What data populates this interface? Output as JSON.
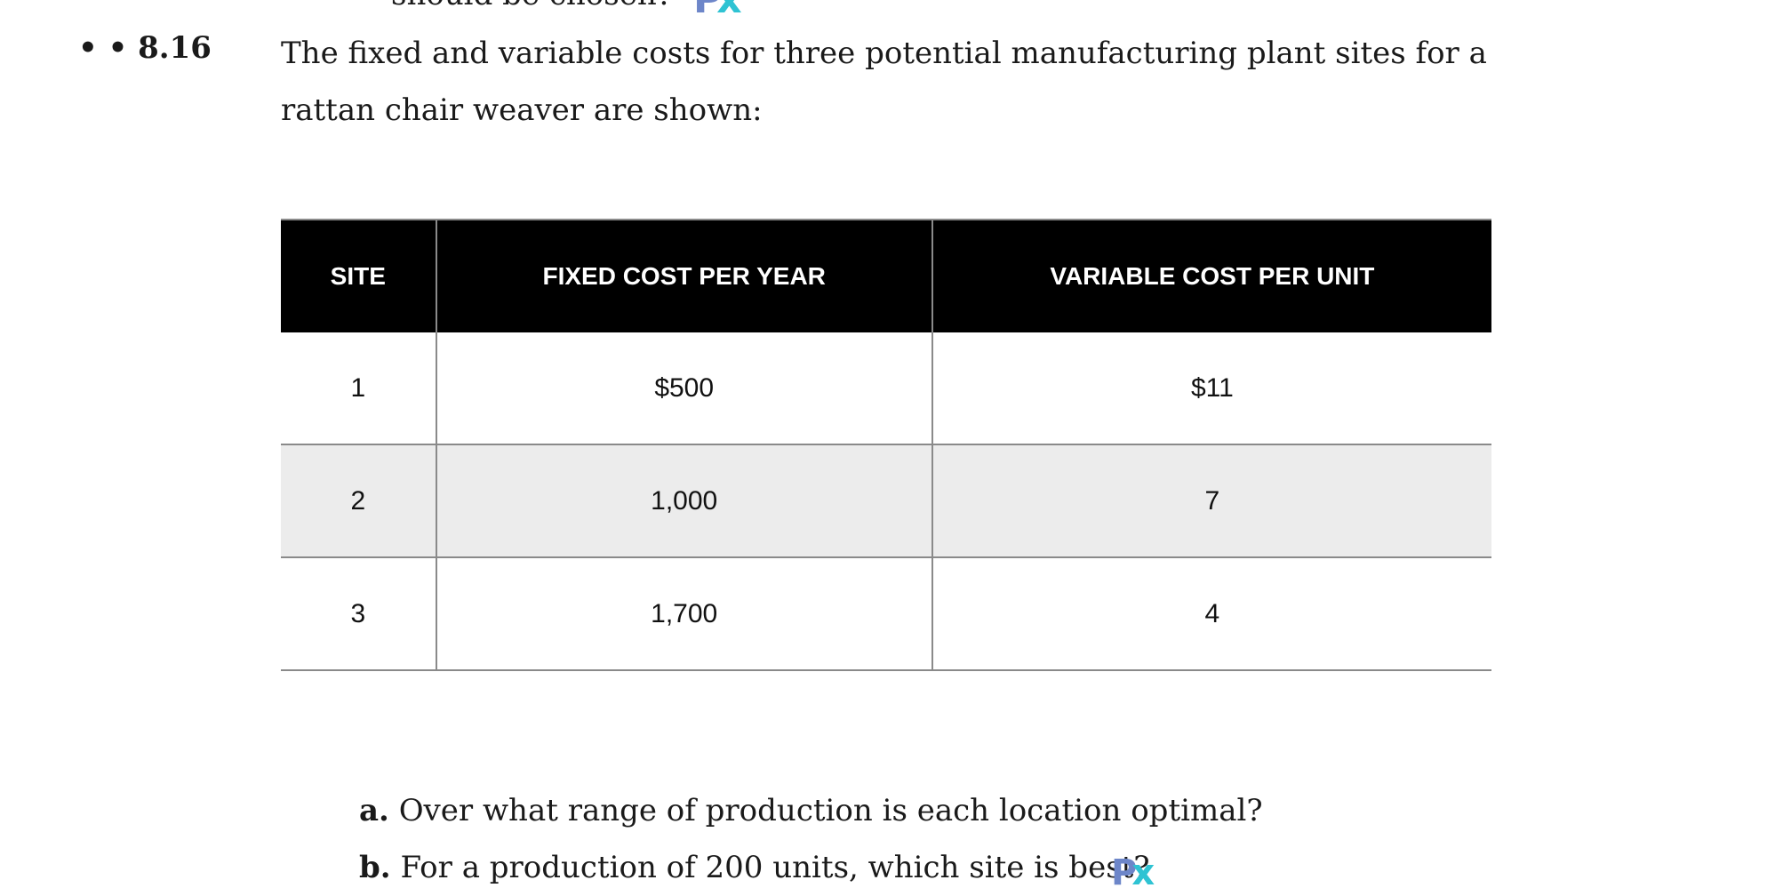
{
  "problem": {
    "number": "• • 8.16",
    "text": "The fixed and variable costs for three potential manufacturing plant sites for a rattan chair weaver are shown:",
    "clipped_previous_line": "should be chosen?"
  },
  "table": {
    "headers": [
      "SITE",
      "FIXED COST PER YEAR",
      "VARIABLE COST PER UNIT"
    ],
    "rows": [
      {
        "site": "1",
        "fixed": "$500",
        "variable": "$11"
      },
      {
        "site": "2",
        "fixed": "1,000",
        "variable": "7"
      },
      {
        "site": "3",
        "fixed": "1,700",
        "variable": "4"
      }
    ]
  },
  "questions": [
    {
      "label": "a.",
      "text": "Over what range of production is each location optimal?"
    },
    {
      "label": "b.",
      "text": "For a production of 200 units, which site is best?"
    }
  ],
  "logo": {
    "p": "P",
    "x": "x"
  },
  "colors": {
    "header_bg": "#000000",
    "shaded_row": "#ececec",
    "logo_p": "#6d86c9",
    "logo_x": "#2fc3d3"
  }
}
